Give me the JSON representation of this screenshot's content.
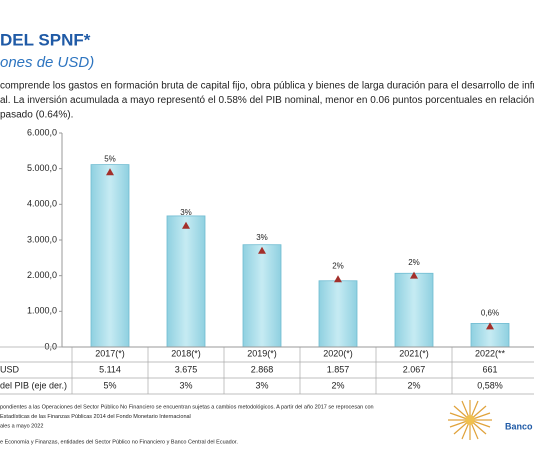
{
  "chart_data": {
    "type": "bar",
    "title": "DEL SPNF*",
    "subtitle": "ones de USD)",
    "description": [
      "comprende los gastos en formación bruta de capital fijo, obra pública y bienes de larga duración para el desarrollo de infrae",
      "al. La inversión acumulada a mayo representó el 0.58% del PIB nominal, menor en 0.06 puntos porcentuales en relación a lo",
      "pasado (0.64%)."
    ],
    "categories": [
      "2017(*)",
      "2018(*)",
      "2019(*)",
      "2020(*)",
      "2021(*)",
      "2022(**"
    ],
    "series": [
      {
        "name": "USD",
        "type": "bar",
        "color": "#a9dce8",
        "values": [
          5114,
          3675,
          2868,
          1857,
          2067,
          661
        ],
        "value_labels": [
          "5.114",
          "3.675",
          "2.868",
          "1.857",
          "2.067",
          "661"
        ]
      },
      {
        "name": "del PIB (eje der.)",
        "type": "marker",
        "axis": "y2",
        "color": "#a3302b",
        "values": [
          4.9,
          3.4,
          2.7,
          1.9,
          2.0,
          0.58
        ],
        "value_labels": [
          "5%",
          "3%",
          "3%",
          "2%",
          "2%",
          "0,6%"
        ],
        "table_labels": [
          "5%",
          "3%",
          "3%",
          "2%",
          "2%",
          "0,58%"
        ]
      }
    ],
    "ylim": [
      0,
      6000
    ],
    "yticks": [
      {
        "value": 0,
        "label": "0,0"
      },
      {
        "value": 1000,
        "label": "1.000,0"
      },
      {
        "value": 2000,
        "label": "2.000,0"
      },
      {
        "value": 3000,
        "label": "3.000,0"
      },
      {
        "value": 4000,
        "label": "4.000,0"
      },
      {
        "value": 5000,
        "label": "5.000,0"
      },
      {
        "value": 6000,
        "label": "6.000,0"
      }
    ],
    "y2lim": [
      0,
      6
    ],
    "footnotes": [
      "pondientes a las Operaciones del Sector Público No Financiero se encuentran sujetas a cambios metodológicos. A partir del año 2017 se reprocesan con",
      "Estadísticas de las Finanzas Públicas 2014 del Fondo Monetario Internacional",
      "ales a mayo 2022"
    ],
    "source": "e Economía y Finanzas, entidades del Sector Público no Financiero y Banco Central del Ecuador.",
    "logo_text": "Banco"
  }
}
